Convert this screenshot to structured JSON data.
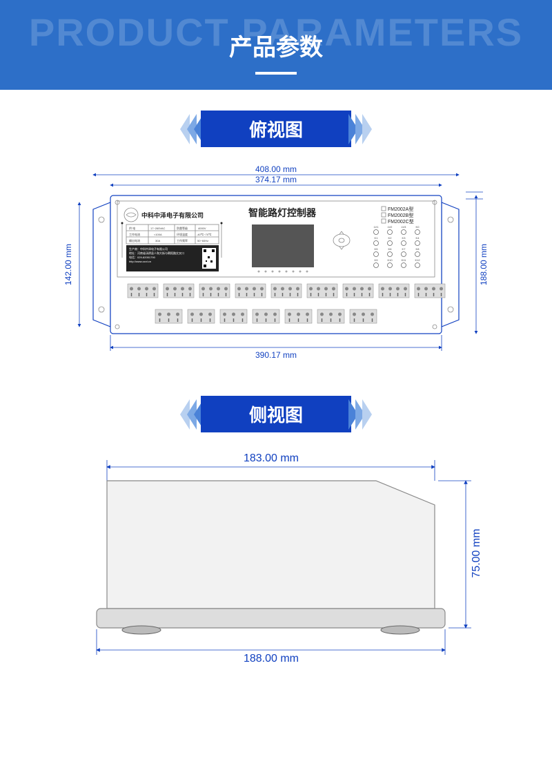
{
  "header": {
    "bg": "PRODUCT PARAMETERS",
    "title": "产品参数"
  },
  "ribbons": {
    "top": "俯视图",
    "side": "侧视图"
  },
  "colors": {
    "primary": "#1040c0",
    "header_bg": "#2d6fc8",
    "chev1": "#b8d0f0",
    "chev2": "#7da9e5",
    "chev3": "#4a82d8"
  },
  "top_view": {
    "dims": {
      "outer_w": "408.00 mm",
      "inner_w": "374.17 mm",
      "bottom_w": "390.17 mm",
      "h": "142.00 mm",
      "outer_h": "188.00 mm"
    },
    "company": "中科中泽电子有限公司",
    "device_title": "智能路灯控制器",
    "models": [
      "FM2002A型",
      "FM2002B型",
      "FM2002C型"
    ],
    "spec_rows": [
      [
        "供  电",
        "17~265VAC",
        "防雷等级",
        "4000V"
      ],
      [
        "工作电流",
        "<100A",
        "环境温度",
        "-40℃~70℃"
      ],
      [
        "输出电流",
        "30A",
        "工作频率",
        "50~60Hz"
      ]
    ],
    "info_lines": [
      "生产商：中科中泽电子有限公司",
      "地址：河南省汤阴县人和大街与朝阳路交叉口",
      "电话：029-82051790",
      "http://www.zzct.cn"
    ],
    "led_groups": [
      [
        "LV1",
        "LV2",
        "LV3",
        "K0"
      ],
      [
        "K1",
        "K2",
        "K3",
        "K4"
      ],
      [
        "K5",
        "K6",
        "K7",
        "K8"
      ],
      [
        "K9",
        "K10",
        "K11",
        "K12"
      ]
    ],
    "terminal_rows": {
      "top": [
        4,
        4,
        4,
        4,
        4,
        4,
        4,
        4,
        4
      ],
      "bottom": [
        3,
        3,
        3,
        3,
        3,
        3,
        3
      ]
    }
  },
  "side_view": {
    "dims": {
      "top_w": "183.00 mm",
      "bottom_w": "188.00 mm",
      "h": "75.00 mm"
    }
  }
}
